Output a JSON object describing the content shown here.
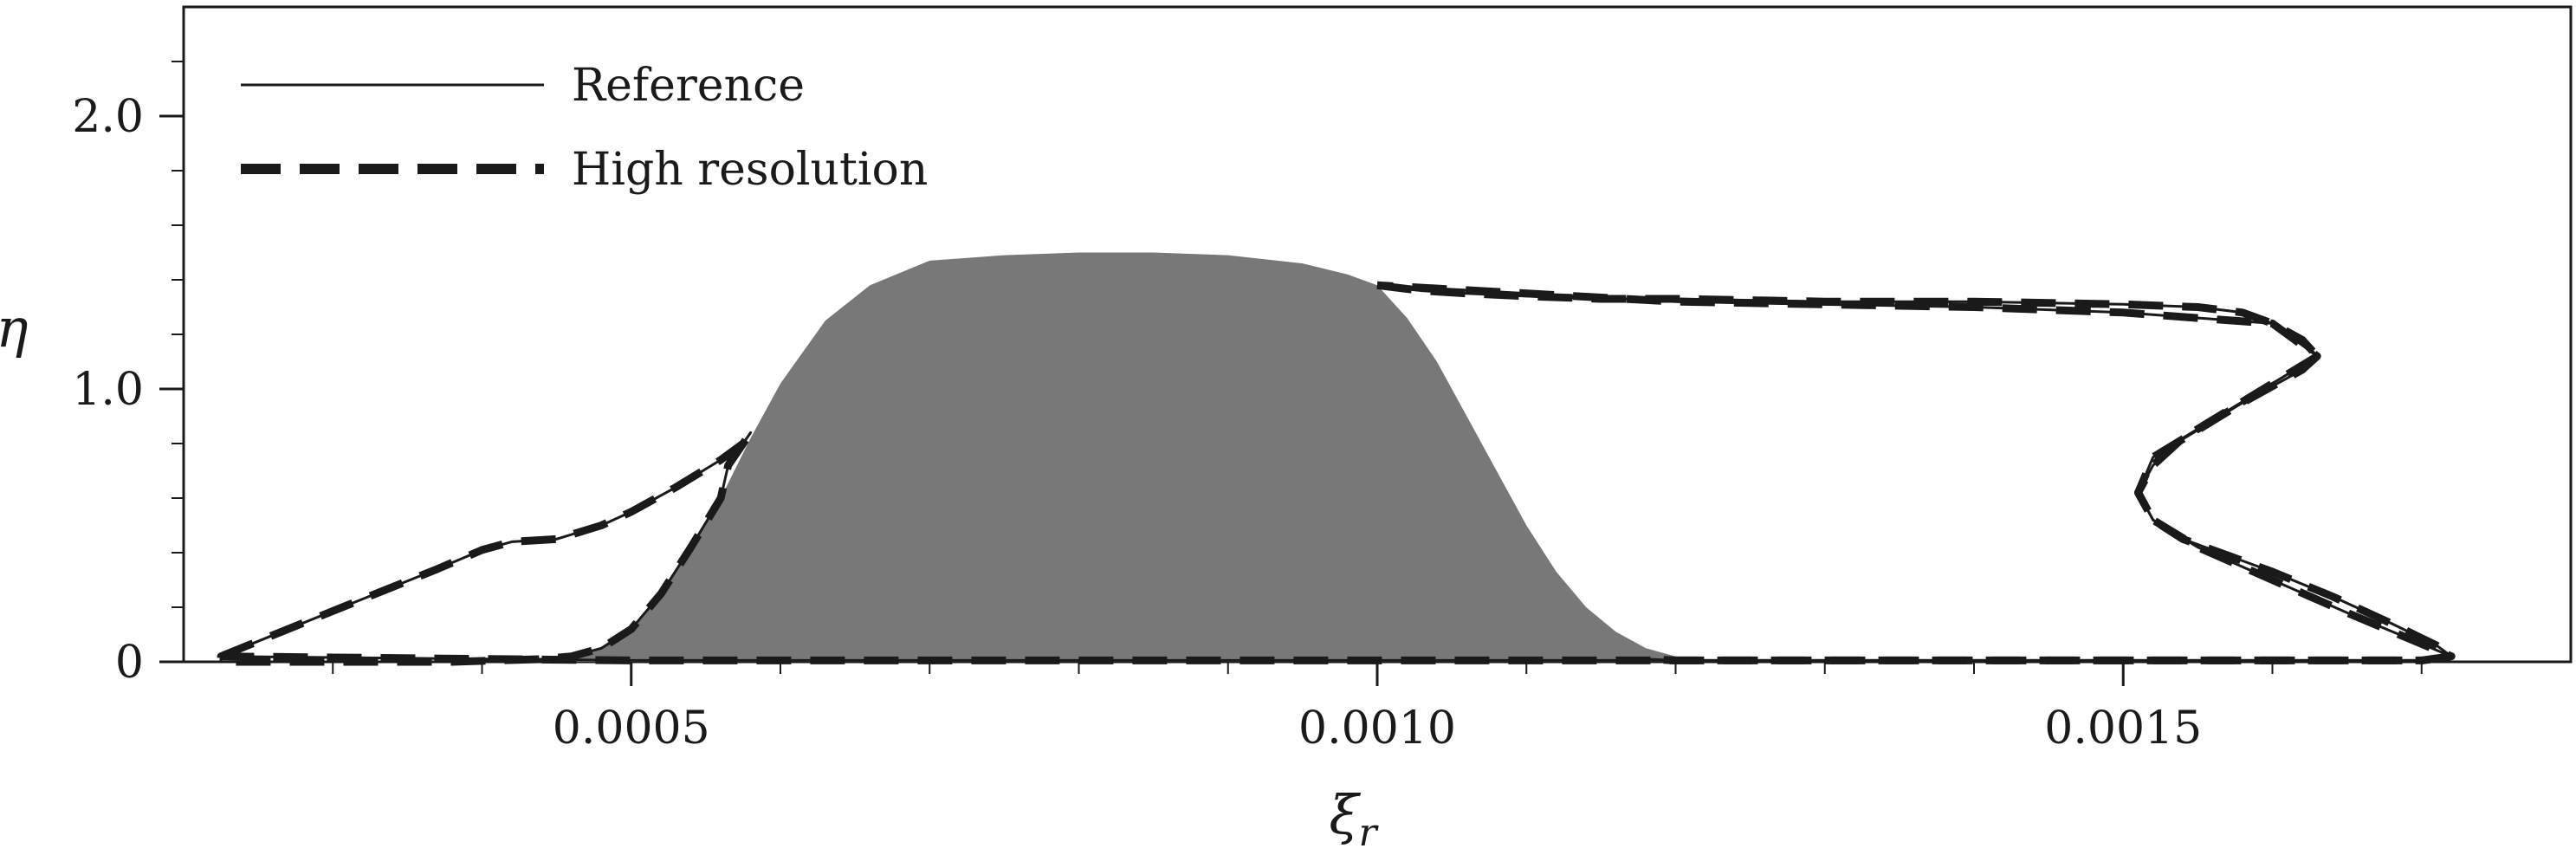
{
  "chart_data": {
    "type": "line",
    "xlabel": "ξ",
    "xlabel_subscript": "r",
    "ylabel": "η",
    "xlim": [
      0.0002,
      0.0018
    ],
    "ylim": [
      0,
      2.4
    ],
    "x_ticks": [
      {
        "value": 0.0005,
        "label": "0.0005"
      },
      {
        "value": 0.001,
        "label": "0.0010"
      },
      {
        "value": 0.0015,
        "label": "0.0015"
      }
    ],
    "y_ticks": [
      {
        "value": 0,
        "label": "0"
      },
      {
        "value": 1.0,
        "label": "1.0"
      },
      {
        "value": 2.0,
        "label": "2.0"
      }
    ],
    "x_minor_step": 0.0001,
    "y_minor_step": 0.2,
    "grid": false,
    "legend_position": "top-left",
    "colors": {
      "shaded": "#787878",
      "line": "#1a1a1a",
      "axis": "#1a1a1a"
    },
    "shaded_region": {
      "x": [
        0.00044,
        0.00048,
        0.0005,
        0.00052,
        0.00054,
        0.00056,
        0.00058,
        0.0006,
        0.00063,
        0.00066,
        0.0007,
        0.00075,
        0.0008,
        0.00085,
        0.0009,
        0.00095,
        0.00098,
        0.001,
        0.00102,
        0.00104,
        0.00106,
        0.00108,
        0.0011,
        0.00112,
        0.00114,
        0.00116,
        0.00118,
        0.0012,
        0.00122
      ],
      "y": [
        0.01,
        0.05,
        0.12,
        0.25,
        0.42,
        0.6,
        0.82,
        1.02,
        1.25,
        1.38,
        1.47,
        1.49,
        1.5,
        1.5,
        1.49,
        1.46,
        1.42,
        1.38,
        1.26,
        1.1,
        0.9,
        0.7,
        0.5,
        0.33,
        0.2,
        0.11,
        0.05,
        0.02,
        0.005
      ]
    },
    "series": [
      {
        "name": "Reference",
        "style": "solid",
        "x": [
          0.000225,
          0.00027,
          0.00032,
          0.00037,
          0.0004,
          0.00042,
          0.00045,
          0.00048,
          0.0005,
          0.00053,
          0.00056,
          0.000575,
          0.00058,
          0.000565,
          0.00056,
          0.00054,
          0.00052,
          0.0005,
          0.00048,
          0.00046,
          0.00044,
          0.00041,
          0.00038,
          0.00035,
          0.0003,
          0.00025,
          0.000225,
          0.000225,
          0.0005,
          0.001,
          0.00105,
          0.0011,
          0.00115,
          0.0012,
          0.00125,
          0.0013,
          0.0014,
          0.0015,
          0.0016,
          0.00165,
          0.0017,
          0.00172,
          0.00165,
          0.0016,
          0.00155,
          0.00152,
          0.00151,
          0.00152,
          0.00155,
          0.00158,
          0.00162,
          0.00163,
          0.0016,
          0.0015,
          0.0014,
          0.0012,
          0.001,
          0.001
        ],
        "y": [
          0.02,
          0.12,
          0.23,
          0.34,
          0.41,
          0.44,
          0.45,
          0.5,
          0.55,
          0.64,
          0.74,
          0.8,
          0.84,
          0.72,
          0.6,
          0.42,
          0.25,
          0.12,
          0.05,
          0.02,
          0.01,
          0.005,
          0,
          0,
          0,
          0,
          0,
          0.02,
          0.005,
          0.005,
          0.005,
          0.005,
          0.005,
          0.005,
          0.005,
          0.005,
          0.005,
          0.005,
          0.005,
          0.005,
          0.005,
          0.02,
          0.18,
          0.3,
          0.42,
          0.52,
          0.62,
          0.75,
          0.85,
          0.95,
          1.07,
          1.12,
          1.24,
          1.28,
          1.3,
          1.32,
          1.38,
          1.38
        ]
      },
      {
        "name": "High resolution",
        "style": "dashed",
        "x": [
          0.000225,
          0.00027,
          0.00032,
          0.00037,
          0.0004,
          0.00042,
          0.00045,
          0.00048,
          0.0005,
          0.00053,
          0.00056,
          0.000575,
          0.00058,
          0.000565,
          0.00056,
          0.00054,
          0.00052,
          0.0005,
          0.00048,
          0.00046,
          0.00044,
          0.00041,
          0.00038,
          0.00035,
          0.0003,
          0.00025,
          0.000225,
          0.000225,
          0.0005,
          0.001,
          0.00105,
          0.0011,
          0.00115,
          0.0012,
          0.00125,
          0.0013,
          0.0014,
          0.0015,
          0.0016,
          0.00165,
          0.0017,
          0.00172,
          0.00165,
          0.0016,
          0.00155,
          0.00152,
          0.00151,
          0.00152,
          0.00155,
          0.00158,
          0.00162,
          0.00163,
          0.0016,
          0.0015,
          0.0014,
          0.0012,
          0.001,
          0.001
        ],
        "y": [
          0.02,
          0.12,
          0.23,
          0.34,
          0.41,
          0.44,
          0.45,
          0.5,
          0.55,
          0.64,
          0.74,
          0.8,
          0.84,
          0.72,
          0.6,
          0.42,
          0.25,
          0.12,
          0.05,
          0.02,
          0.01,
          0.005,
          0,
          0,
          0,
          0,
          0,
          0.02,
          0.005,
          0.005,
          0.005,
          0.005,
          0.005,
          0.005,
          0.005,
          0.005,
          0.005,
          0.005,
          0.005,
          0.005,
          0.005,
          0.02,
          0.18,
          0.3,
          0.42,
          0.52,
          0.62,
          0.75,
          0.85,
          0.95,
          1.07,
          1.12,
          1.24,
          1.28,
          1.3,
          1.32,
          1.38,
          1.38
        ]
      }
    ],
    "right_lobe_upper": {
      "x": [
        0.001,
        0.00103,
        0.00106,
        0.0011,
        0.00115,
        0.0012,
        0.0013,
        0.0014,
        0.0015,
        0.00155,
        0.00158,
        0.0016,
        0.00162,
        0.00163
      ],
      "y": [
        1.38,
        1.36,
        1.35,
        1.34,
        1.33,
        1.33,
        1.32,
        1.32,
        1.31,
        1.3,
        1.28,
        1.24,
        1.18,
        1.12
      ]
    },
    "right_lobe_lower": {
      "x": [
        0.00163,
        0.0016,
        0.00157,
        0.00154,
        0.00152,
        0.00151,
        0.00152,
        0.00154,
        0.00157,
        0.0016,
        0.00164,
        0.00168,
        0.00171,
        0.00172,
        0.0017,
        0.0016,
        0.0015,
        0.0014,
        0.0013,
        0.0012,
        0.00118
      ],
      "y": [
        1.12,
        1.02,
        0.92,
        0.82,
        0.72,
        0.62,
        0.52,
        0.45,
        0.39,
        0.33,
        0.24,
        0.14,
        0.06,
        0.02,
        0.005,
        0.005,
        0.005,
        0.005,
        0.005,
        0.005,
        0.01
      ]
    }
  },
  "legend": {
    "entries": [
      {
        "label": "Reference",
        "style": "solid"
      },
      {
        "label": "High resolution",
        "style": "dashed"
      }
    ]
  }
}
